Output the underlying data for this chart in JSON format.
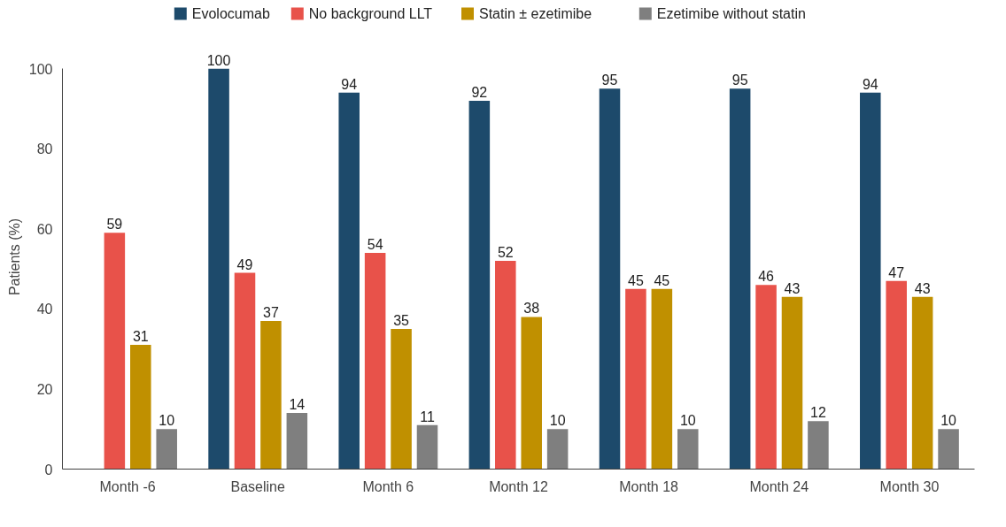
{
  "chart_data": {
    "type": "bar",
    "ylabel": "Patients (%)",
    "categories": [
      "Month -6",
      "Baseline",
      "Month 6",
      "Month 12",
      "Month 18",
      "Month 24",
      "Month 30"
    ],
    "series": [
      {
        "name": "Evolocumab",
        "color": "#1d4a6b",
        "values": [
          null,
          100,
          94,
          92,
          95,
          95,
          94
        ]
      },
      {
        "name": "No background LLT",
        "color": "#e8524a",
        "values": [
          59,
          49,
          54,
          52,
          45,
          46,
          47
        ]
      },
      {
        "name": "Statin ± ezetimibe",
        "color": "#c09000",
        "values": [
          31,
          37,
          35,
          38,
          45,
          43,
          43
        ]
      },
      {
        "name": "Ezetimibe without statin",
        "color": "#7f7f7f",
        "values": [
          10,
          14,
          11,
          10,
          10,
          12,
          10
        ]
      }
    ],
    "ylim": [
      0,
      100
    ],
    "yticks": [
      0,
      20,
      40,
      60,
      80,
      100
    ],
    "data_labels": true,
    "legend": "top",
    "grid": false
  }
}
